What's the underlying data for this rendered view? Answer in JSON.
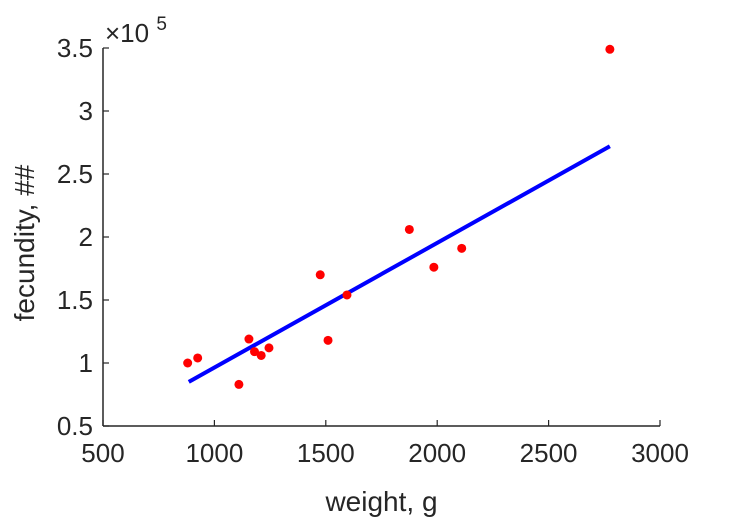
{
  "chart_data": {
    "type": "scatter",
    "title": "",
    "xlabel": "weight, g",
    "ylabel": "fecundity, ##",
    "y_multiplier": {
      "base": "×10",
      "exponent": "5"
    },
    "xlim": [
      500,
      3000
    ],
    "ylim": [
      0.5,
      3.5
    ],
    "xticks": [
      "500",
      "1000",
      "1500",
      "2000",
      "2500",
      "3000"
    ],
    "yticks": [
      "0.5",
      "1",
      "1.5",
      "2",
      "2.5",
      "3",
      "3.5"
    ],
    "grid": false,
    "legend": false,
    "colors": {
      "points": "#ff0000",
      "fit_line": "#0000ff",
      "axis": "#262626"
    },
    "series": [
      {
        "kind": "points",
        "x": [
          880,
          925,
          1110,
          1155,
          1180,
          1210,
          1245,
          1475,
          1510,
          1595,
          1875,
          1985,
          2110,
          2775
        ],
        "y": [
          1.0,
          1.04,
          0.83,
          1.19,
          1.09,
          1.06,
          1.12,
          1.7,
          1.18,
          1.54,
          2.06,
          1.76,
          1.91,
          3.49
        ]
      },
      {
        "kind": "fit_line",
        "x": [
          885,
          2775
        ],
        "y": [
          0.85,
          2.72
        ]
      }
    ]
  }
}
